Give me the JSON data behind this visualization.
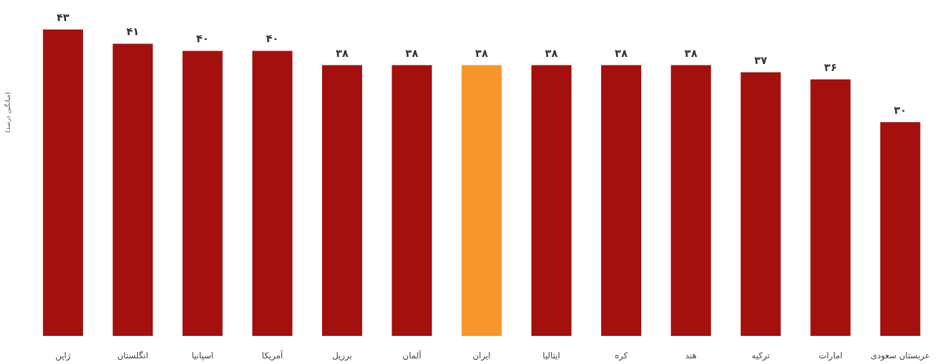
{
  "chart_data": {
    "type": "bar",
    "ylabel": "(میانگین درصد)",
    "categories": [
      "ژاپن",
      "انگلستان",
      "اسپانیا",
      "آمریکا",
      "برزیل",
      "آلمان",
      "ایران",
      "ایتالیا",
      "کره",
      "هند",
      "ترکیه",
      "امارات",
      "عربستان سعودی"
    ],
    "values": [
      43,
      41,
      40,
      40,
      38,
      38,
      38,
      38,
      38,
      38,
      37,
      36,
      30
    ],
    "value_labels": [
      "۴۳",
      "۴۱",
      "۴۰",
      "۴۰",
      "۳۸",
      "۳۸",
      "۳۸",
      "۳۸",
      "۳۸",
      "۳۸",
      "۳۷",
      "۳۶",
      "۳۰"
    ],
    "colors": [
      "#a3100e",
      "#a3100e",
      "#a3100e",
      "#a3100e",
      "#a3100e",
      "#a3100e",
      "#f7962a",
      "#a3100e",
      "#a3100e",
      "#a3100e",
      "#a3100e",
      "#a3100e",
      "#a3100e"
    ]
  }
}
